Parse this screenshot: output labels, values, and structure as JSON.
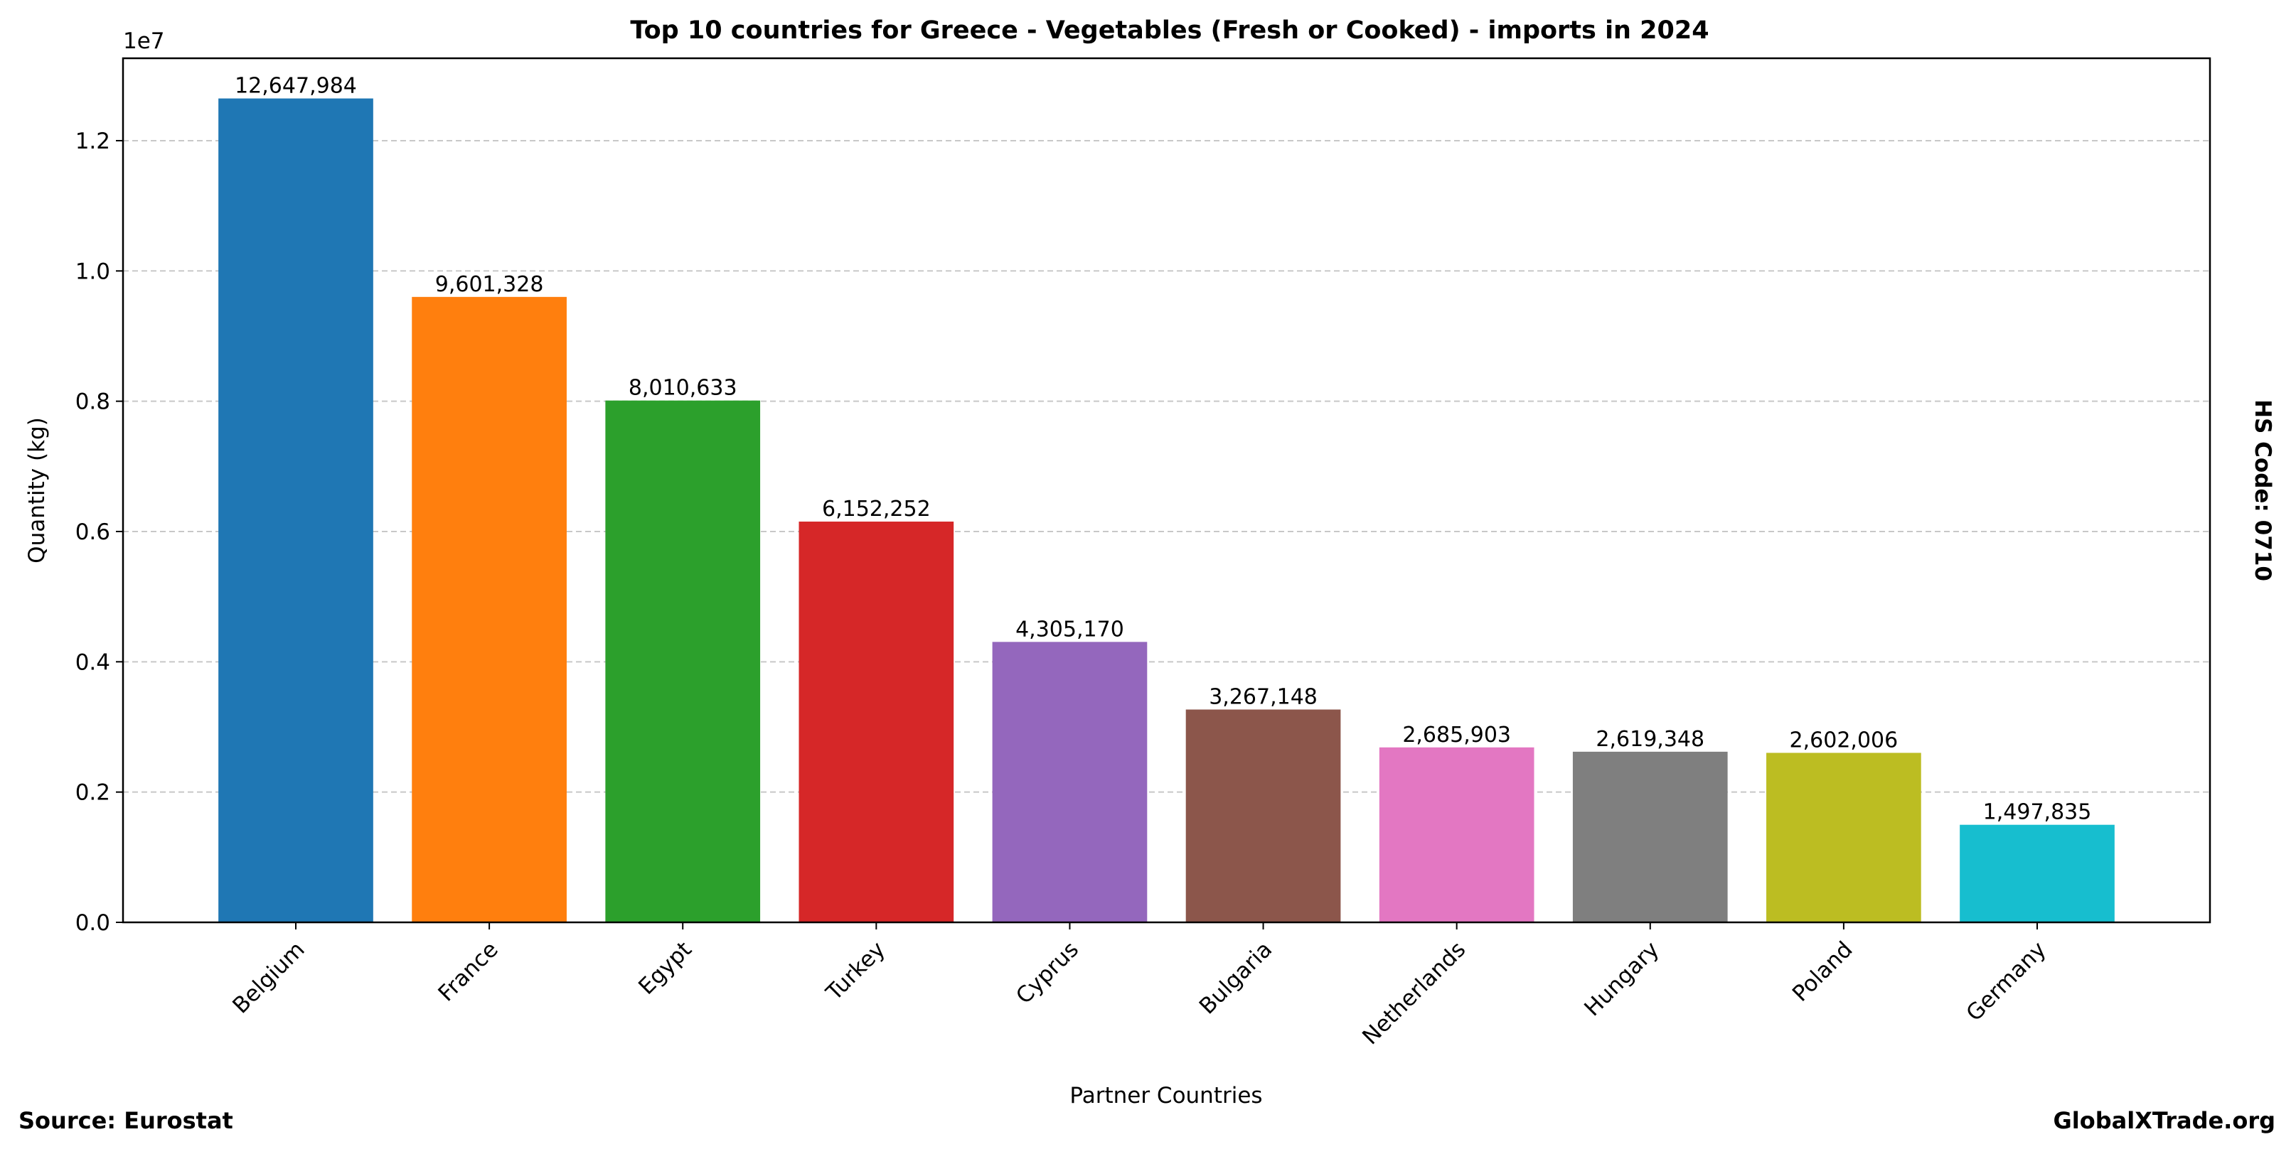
{
  "chart_data": {
    "type": "bar",
    "title": "Top 10 countries for Greece - Vegetables (Fresh or Cooked) - imports in 2024",
    "xlabel": "Partner Countries",
    "ylabel": "Quantity (kg)",
    "y_offset_label": "1e7",
    "ylim": [
      0,
      13265000
    ],
    "yticks": [
      0,
      2000000,
      4000000,
      6000000,
      8000000,
      10000000,
      12000000
    ],
    "ytick_labels": [
      "0.0",
      "0.2",
      "0.4",
      "0.6",
      "0.8",
      "1.0",
      "1.2"
    ],
    "grid": "y-dashed",
    "categories": [
      "Belgium",
      "France",
      "Egypt",
      "Turkey",
      "Cyprus",
      "Bulgaria",
      "Netherlands",
      "Hungary",
      "Poland",
      "Germany"
    ],
    "values": [
      12647984,
      9601328,
      8010633,
      6152252,
      4305170,
      3267148,
      2685903,
      2619348,
      2602006,
      1497835
    ],
    "value_labels": [
      "12,647,984",
      "9,601,328",
      "8,010,633",
      "6,152,252",
      "4,305,170",
      "3,267,148",
      "2,685,903",
      "2,619,348",
      "2,602,006",
      "1,497,835"
    ],
    "colors": [
      "#1f77b4",
      "#ff7f0e",
      "#2ca02c",
      "#d62728",
      "#9467bd",
      "#8c564b",
      "#e377c2",
      "#7f7f7f",
      "#bcbd22",
      "#17becf"
    ]
  },
  "side_label": "HS Code: 0710",
  "source": "Source: Eurostat",
  "brand": "GlobalXTrade.org"
}
